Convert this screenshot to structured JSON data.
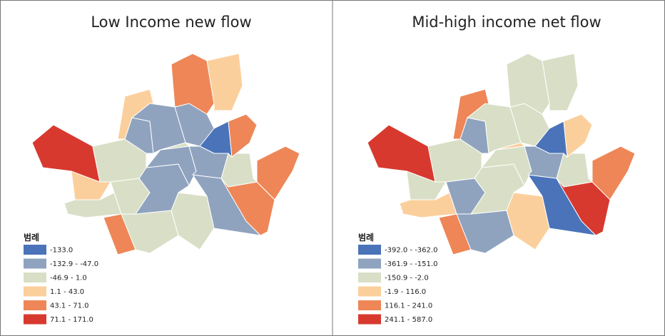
{
  "panels": [
    {
      "title": "Low Income new flow",
      "legend": {
        "title": "범례",
        "items": [
          {
            "label": "-133.0",
            "color": "#4a73b9"
          },
          {
            "label": "-132.9 - -47.0",
            "color": "#8fa3bf"
          },
          {
            "label": "-46.9 - 1.0",
            "color": "#d9dfc6"
          },
          {
            "label": "1.1 - 43.0",
            "color": "#fbcf9c"
          },
          {
            "label": "43.1 - 71.0",
            "color": "#ee8657"
          },
          {
            "label": "71.1 - 171.0",
            "color": "#d8392f"
          }
        ]
      }
    },
    {
      "title": "Mid-high income net flow",
      "legend": {
        "title": "범례",
        "items": [
          {
            "label": "-392.0 - -362.0",
            "color": "#4a73b9"
          },
          {
            "label": "-361.9 - -151.0",
            "color": "#8fa3bf"
          },
          {
            "label": "-150.9 - -2.0",
            "color": "#d9dfc6"
          },
          {
            "label": "-1.9 - 116.0",
            "color": "#fbcf9c"
          },
          {
            "label": "116.1 - 241.0",
            "color": "#ee8657"
          },
          {
            "label": "241.1 - 587.0",
            "color": "#d8392f"
          }
        ]
      }
    }
  ]
}
